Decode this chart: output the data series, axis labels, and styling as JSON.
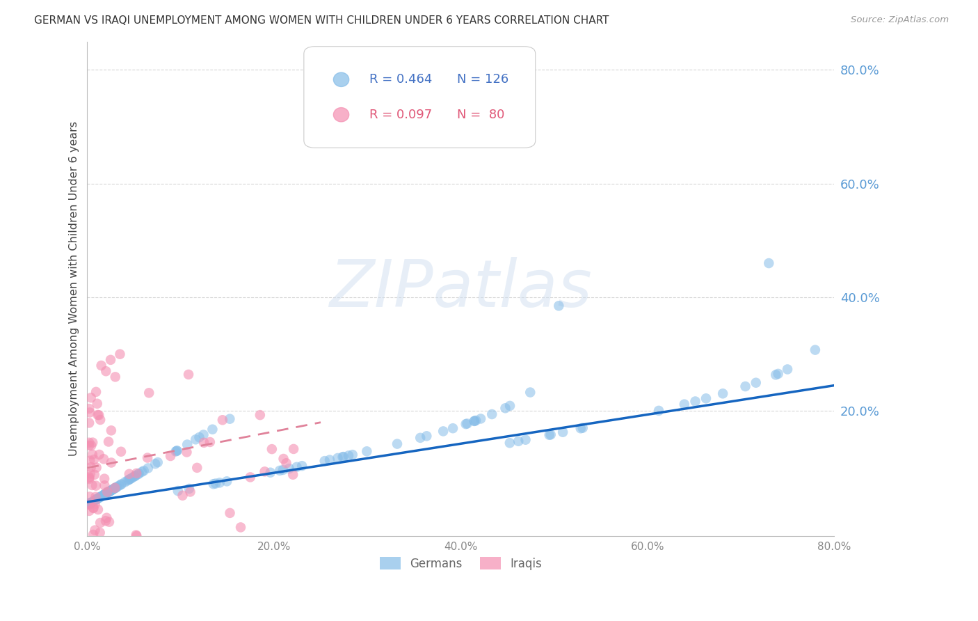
{
  "title": "GERMAN VS IRAQI UNEMPLOYMENT AMONG WOMEN WITH CHILDREN UNDER 6 YEARS CORRELATION CHART",
  "source": "Source: ZipAtlas.com",
  "ylabel": "Unemployment Among Women with Children Under 6 years",
  "xlim": [
    0.0,
    0.8
  ],
  "ylim": [
    -0.02,
    0.85
  ],
  "background_color": "#ffffff",
  "grid_color": "#cccccc",
  "watermark_text": "ZIPatlas",
  "german_color": "#85bce8",
  "iraqi_color": "#f48fb1",
  "german_line_color": "#1565c0",
  "iraqi_line_color": "#e0829a",
  "german_trendline_x": [
    0.0,
    0.8
  ],
  "german_trendline_y": [
    0.04,
    0.245
  ],
  "iraqi_trendline_x": [
    0.0,
    0.25
  ],
  "iraqi_trendline_y": [
    0.1,
    0.18
  ],
  "yticks": [
    0.2,
    0.4,
    0.6,
    0.8
  ],
  "ytick_labels": [
    "20.0%",
    "40.0%",
    "60.0%",
    "80.0%"
  ],
  "xticks": [
    0.0,
    0.2,
    0.4,
    0.6,
    0.8
  ],
  "xtick_labels": [
    "0.0%",
    "20.0%",
    "40.0%",
    "60.0%",
    "80.0%"
  ]
}
